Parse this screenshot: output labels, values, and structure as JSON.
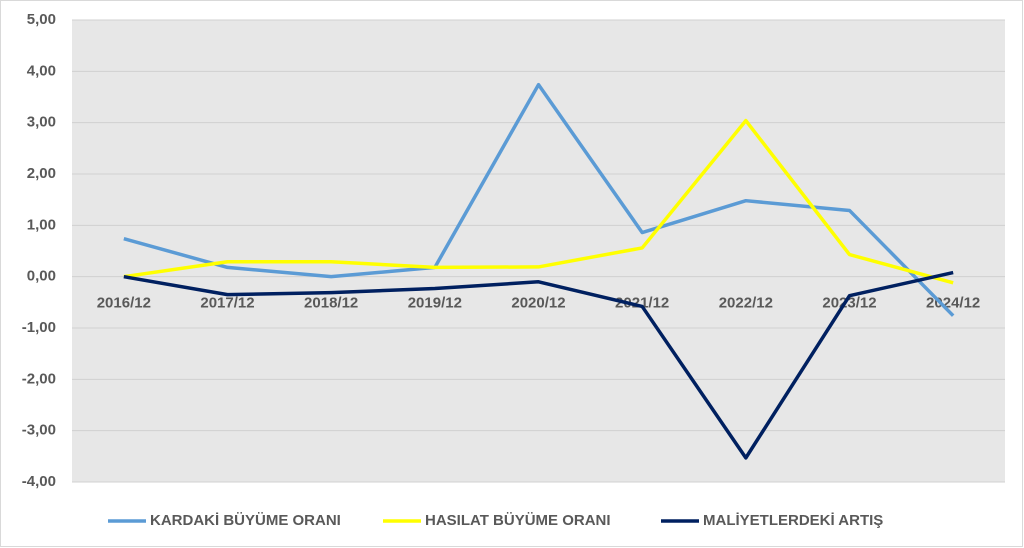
{
  "chart_data": {
    "type": "line",
    "categories": [
      "2016/12",
      "2017/12",
      "2018/12",
      "2019/12",
      "2020/12",
      "2021/12",
      "2022/12",
      "2023/12",
      "2024/12"
    ],
    "series": [
      {
        "name": "KARDAKİ BÜYÜME ORANI",
        "color": "#5b9bd5",
        "values": [
          0.74,
          0.18,
          0.0,
          0.18,
          3.74,
          0.86,
          1.48,
          1.29,
          -0.76
        ]
      },
      {
        "name": "HASILAT BÜYÜME ORANI",
        "color": "#ffff00",
        "values": [
          0.0,
          0.29,
          0.29,
          0.18,
          0.19,
          0.56,
          3.04,
          0.43,
          -0.12
        ]
      },
      {
        "name": "MALİYETLERDEKİ ARTIŞ",
        "color": "#002060",
        "values": [
          0.0,
          -0.35,
          -0.31,
          -0.23,
          -0.1,
          -0.58,
          -3.53,
          -0.37,
          0.08
        ]
      }
    ],
    "ylim": [
      -4,
      5
    ],
    "yticks": [
      {
        "value": 5,
        "label": "5,00"
      },
      {
        "value": 4,
        "label": "4,00"
      },
      {
        "value": 3,
        "label": "3,00"
      },
      {
        "value": 2,
        "label": "2,00"
      },
      {
        "value": 1,
        "label": "1,00"
      },
      {
        "value": 0,
        "label": "0,00"
      },
      {
        "value": -1,
        "label": "-1,00"
      },
      {
        "value": -2,
        "label": "-2,00"
      },
      {
        "value": -3,
        "label": "-3,00"
      },
      {
        "value": -4,
        "label": "-4,00"
      }
    ],
    "grid": true
  }
}
